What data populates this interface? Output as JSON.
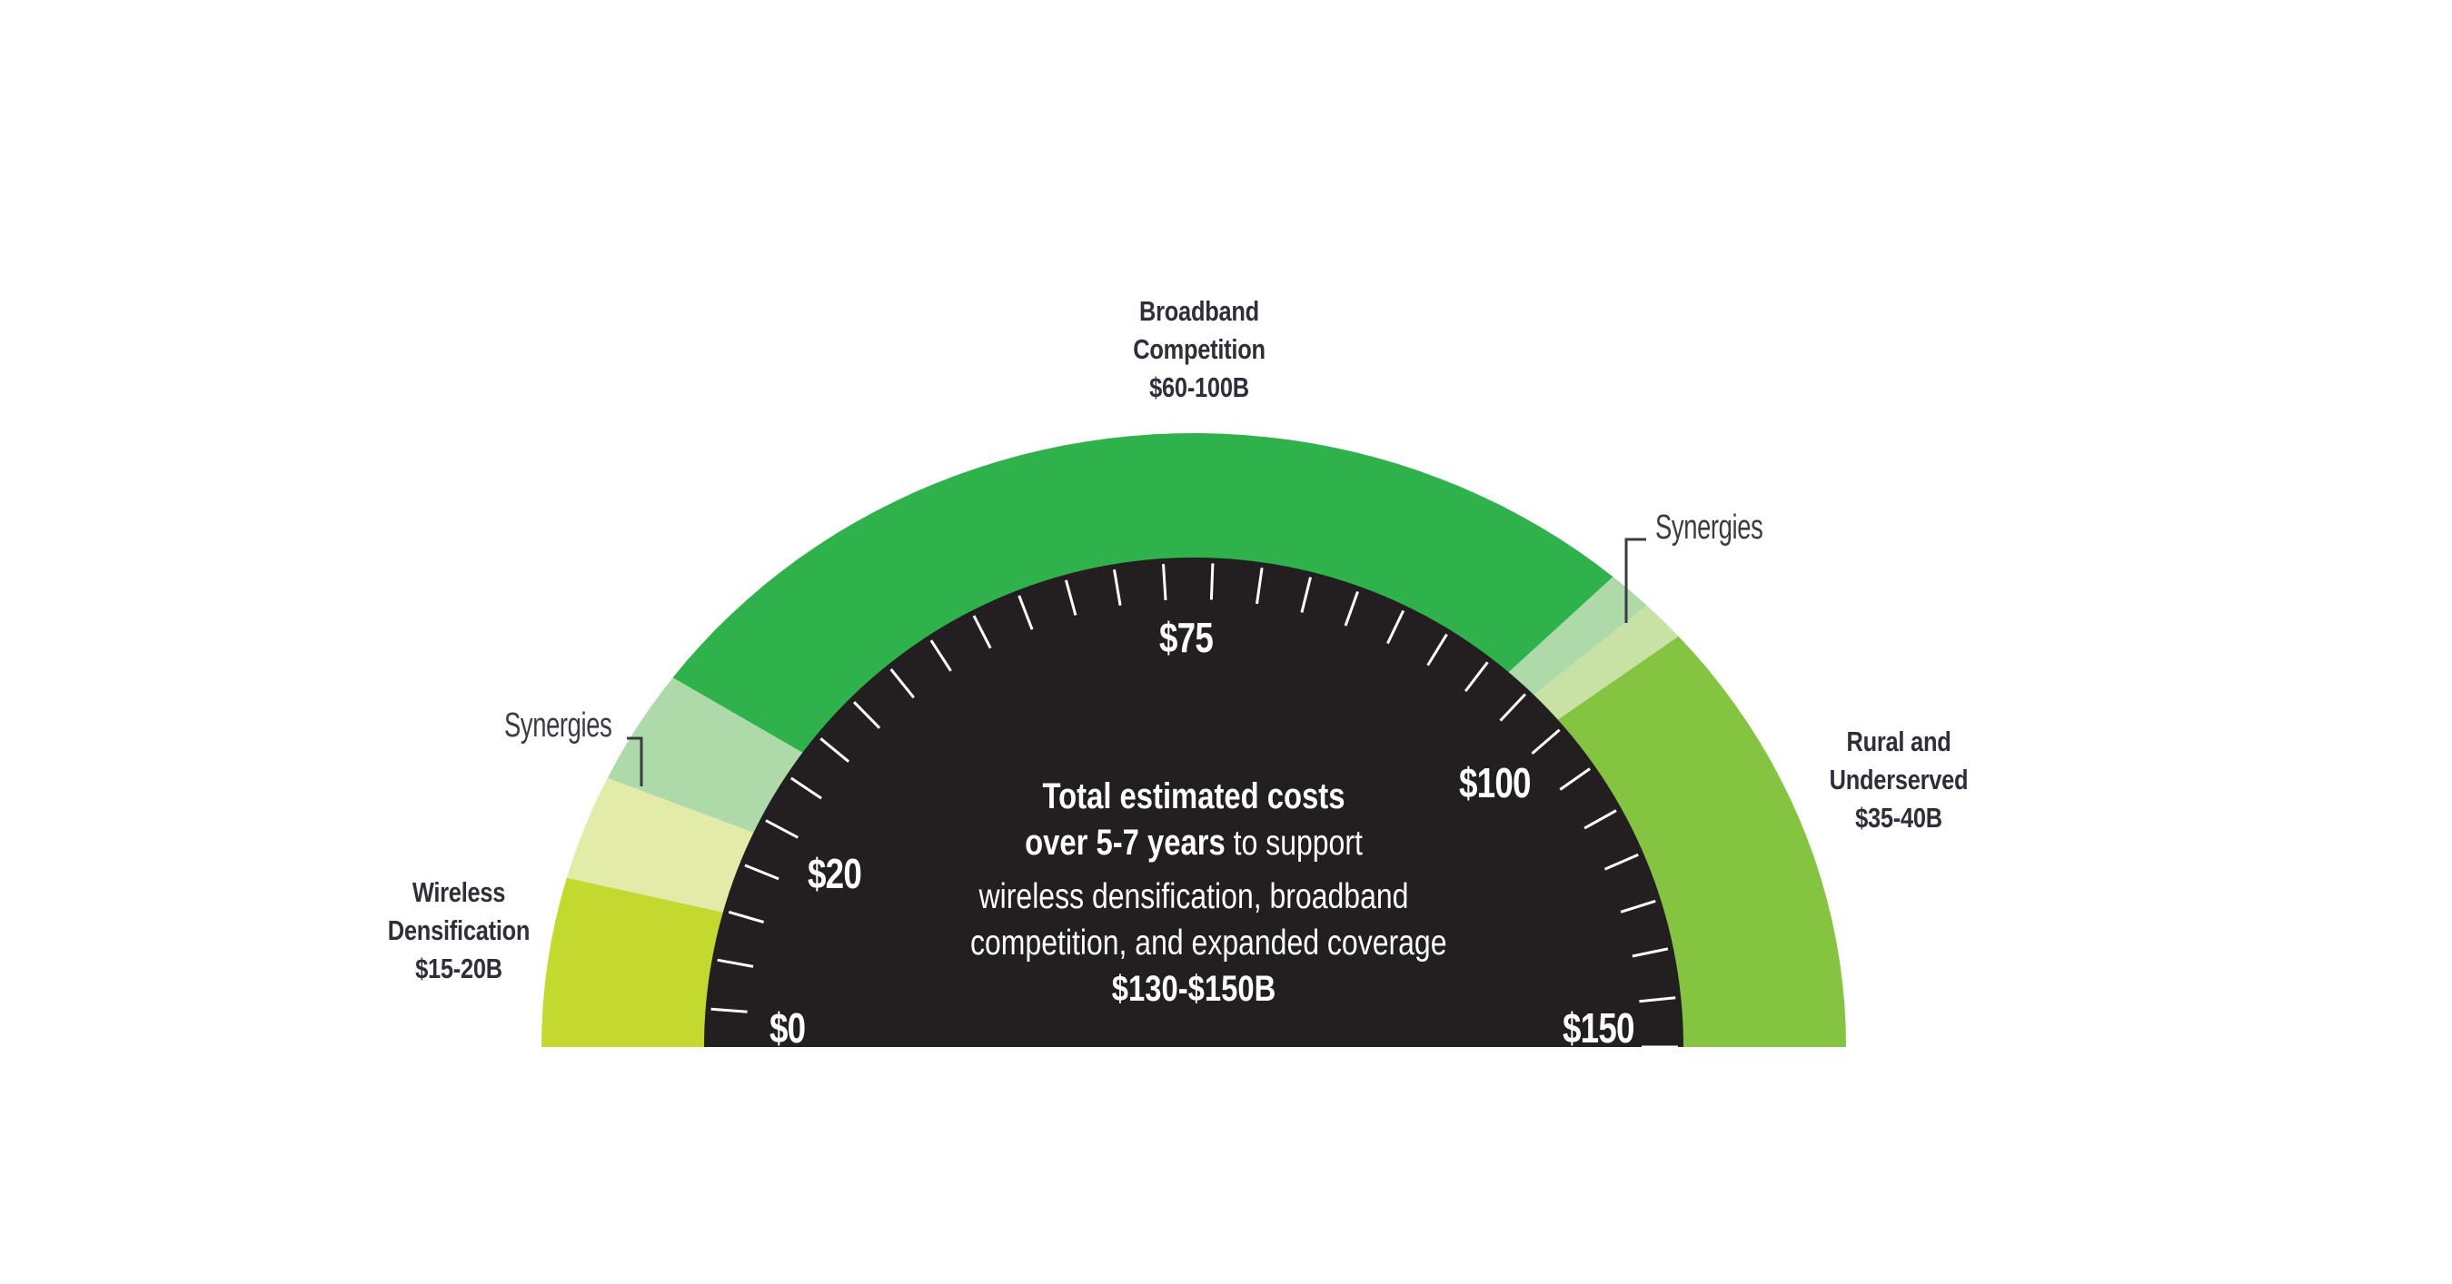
{
  "chart_data": {
    "type": "gauge",
    "title": "Total estimated costs over 5-7 years to support wireless densification, broadband competition, and expanded coverage",
    "total": "$130-$150B",
    "scale": {
      "min": 0,
      "max": 150,
      "unit": "$B",
      "tick_labels": [
        "$0",
        "$20",
        "$75",
        "$100",
        "$150"
      ],
      "tick_count": 31
    },
    "segments": [
      {
        "name": "Wireless Densification",
        "range": "$15-20B",
        "low": 15,
        "high": 20,
        "color": "#c3d92f",
        "start_deg": 0,
        "end_deg": 16
      },
      {
        "name": "Synergies (wireless)",
        "color": "#e2eba8",
        "start_deg": 16,
        "end_deg": 26
      },
      {
        "name": "Synergies (broadband)",
        "color": "#aed9a8",
        "start_deg": 26,
        "end_deg": 37
      },
      {
        "name": "Broadband Competition",
        "range": "$60-100B",
        "low": 60,
        "high": 100,
        "color": "#2fb24c",
        "start_deg": 37,
        "end_deg": 130
      },
      {
        "name": "Synergies (broadband)",
        "color": "#aed9a8",
        "start_deg": 130,
        "end_deg": 134
      },
      {
        "name": "Synergies (rural)",
        "color": "#c8e2a6",
        "start_deg": 134,
        "end_deg": 138
      },
      {
        "name": "Rural and Underserved",
        "range": "$35-40B",
        "low": 35,
        "high": 40,
        "color": "#84c441",
        "start_deg": 138,
        "end_deg": 180
      }
    ],
    "annotations": [
      "Synergies",
      "Synergies"
    ]
  },
  "labels": {
    "broadband": {
      "line1": "Broadband",
      "line2": "Competition",
      "line3": "$60-100B"
    },
    "wireless": {
      "line1": "Wireless",
      "line2": "Densification",
      "line3": "$15-20B"
    },
    "rural": {
      "line1": "Rural and",
      "line2": "Underserved",
      "line3": "$35-40B"
    },
    "synergies_left": "Synergies",
    "synergies_right": "Synergies"
  },
  "ticks": {
    "t0": "$0",
    "t20": "$20",
    "t75": "$75",
    "t100": "$100",
    "t150": "$150"
  },
  "center": {
    "line1": "Total estimated costs",
    "line2_bold": "over 5-7 years",
    "line2_rest": " to support",
    "line3": "wireless densification, broadband",
    "line4": "competition, and expanded coverage",
    "total": "$130-$150B"
  },
  "colors": {
    "dial": "#231f20",
    "tick": "#ffffff",
    "label_text": "#2d2f3a",
    "connector": "#3a3c44"
  }
}
